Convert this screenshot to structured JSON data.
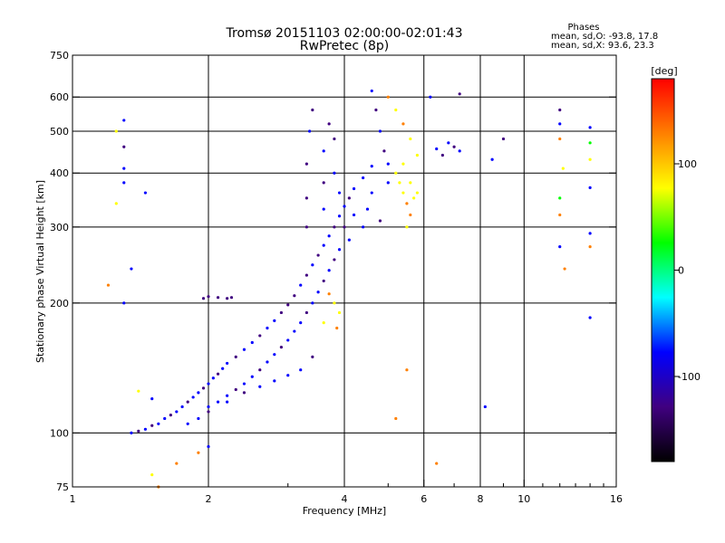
{
  "chart_data": {
    "type": "scatter",
    "title": "Tromsø 20151103 02:00:00-02:01:43",
    "subtitle": "RwPretec (8p)",
    "xlabel": "Frequency [MHz]",
    "ylabel": "Stationary phase Virtual Height [km]",
    "x_scale": "log",
    "y_scale": "log",
    "xlim": [
      1,
      16
    ],
    "ylim": [
      75,
      750
    ],
    "x_ticks": [
      1,
      2,
      4,
      6,
      8,
      10,
      16
    ],
    "x_minor_ticks": [
      3,
      5,
      7,
      9,
      11,
      12,
      13,
      14,
      15
    ],
    "y_ticks": [
      75,
      100,
      200,
      300,
      400,
      500,
      600,
      750
    ],
    "grid": true,
    "phases_box": {
      "heading": "Phases",
      "o_line": "mean, sd,O: -93.8, 17.8",
      "x_line": "mean, sd,X:  93.6, 23.3"
    },
    "colorbar": {
      "label": "[deg]",
      "range": [
        -180,
        180
      ],
      "ticks": [
        100,
        0,
        -100
      ],
      "colors": [
        "#ff0000",
        "#ff8000",
        "#ffff00",
        "#00ff00",
        "#00ffff",
        "#0000ff",
        "#400080",
        "#000000"
      ]
    },
    "series": [
      {
        "values": [
          [
            1.35,
            100,
            -100
          ],
          [
            1.4,
            101,
            -105
          ],
          [
            1.45,
            102,
            -98
          ],
          [
            1.5,
            104,
            -110
          ],
          [
            1.55,
            105,
            -95
          ],
          [
            1.6,
            108,
            -100
          ],
          [
            1.65,
            110,
            -108
          ],
          [
            1.7,
            112,
            -102
          ],
          [
            1.75,
            115,
            -97
          ],
          [
            1.8,
            118,
            -112
          ],
          [
            1.85,
            121,
            -100
          ],
          [
            1.9,
            124,
            -95
          ],
          [
            1.95,
            127,
            -105
          ],
          [
            2.0,
            130,
            -100
          ],
          [
            2.05,
            134,
            -90
          ],
          [
            2.1,
            137,
            -110
          ],
          [
            2.15,
            141,
            -100
          ],
          [
            2.2,
            145,
            -95
          ],
          [
            2.3,
            150,
            -105
          ],
          [
            2.4,
            156,
            -100
          ],
          [
            2.5,
            162,
            -92
          ],
          [
            2.6,
            168,
            -108
          ],
          [
            2.7,
            175,
            -100
          ],
          [
            2.8,
            182,
            -96
          ],
          [
            2.9,
            190,
            -104
          ],
          [
            3.0,
            198,
            -110
          ],
          [
            3.1,
            208,
            -115
          ],
          [
            3.2,
            220,
            -100
          ],
          [
            3.3,
            232,
            -105
          ],
          [
            3.4,
            245,
            -98
          ],
          [
            3.5,
            258,
            -110
          ],
          [
            3.6,
            272,
            -102
          ],
          [
            3.7,
            286,
            -96
          ],
          [
            3.8,
            300,
            -104
          ],
          [
            3.9,
            318,
            -100
          ],
          [
            4.0,
            335,
            -94
          ],
          [
            4.1,
            350,
            -110
          ],
          [
            4.2,
            368,
            -102
          ],
          [
            4.4,
            390,
            -98
          ],
          [
            4.6,
            415,
            -100
          ],
          [
            2.0,
            115,
            -98
          ],
          [
            2.1,
            118,
            -102
          ],
          [
            2.2,
            122,
            -96
          ],
          [
            2.3,
            126,
            -104
          ],
          [
            2.4,
            130,
            -100
          ],
          [
            2.5,
            135,
            -92
          ],
          [
            2.6,
            140,
            -105
          ],
          [
            2.7,
            146,
            -100
          ],
          [
            2.8,
            152,
            -96
          ],
          [
            2.9,
            158,
            -108
          ],
          [
            3.0,
            164,
            -100
          ],
          [
            3.1,
            172,
            -102
          ],
          [
            3.2,
            180,
            -98
          ],
          [
            3.3,
            190,
            -104
          ],
          [
            3.4,
            200,
            -100
          ],
          [
            3.5,
            212,
            -96
          ],
          [
            3.6,
            225,
            -110
          ],
          [
            3.7,
            238,
            -100
          ],
          [
            3.8,
            252,
            -104
          ],
          [
            3.9,
            266,
            -98
          ],
          [
            1.8,
            105,
            -100
          ],
          [
            1.9,
            108,
            -96
          ],
          [
            2.0,
            112,
            -104
          ],
          [
            2.2,
            118,
            -98
          ],
          [
            2.4,
            124,
            -106
          ],
          [
            2.6,
            128,
            -100
          ],
          [
            2.8,
            132,
            -95
          ],
          [
            3.0,
            136,
            -102
          ],
          [
            3.2,
            140,
            -98
          ],
          [
            3.4,
            150,
            -104
          ],
          [
            3.3,
            300,
            -115
          ],
          [
            3.3,
            350,
            -110
          ],
          [
            3.3,
            420,
            -108
          ],
          [
            3.35,
            500,
            -100
          ],
          [
            3.4,
            560,
            -112
          ],
          [
            3.6,
            330,
            -100
          ],
          [
            3.6,
            380,
            -106
          ],
          [
            3.6,
            450,
            -98
          ],
          [
            3.7,
            520,
            -104
          ],
          [
            3.8,
            480,
            -110
          ],
          [
            3.8,
            400,
            -100
          ],
          [
            3.9,
            360,
            -96
          ],
          [
            4.0,
            300,
            -104
          ],
          [
            4.1,
            280,
            -100
          ],
          [
            4.2,
            320,
            -95
          ],
          [
            4.4,
            300,
            -100
          ],
          [
            4.5,
            330,
            -102
          ],
          [
            4.6,
            360,
            -98
          ],
          [
            4.8,
            310,
            -104
          ],
          [
            4.6,
            620,
            -100
          ],
          [
            4.7,
            560,
            -110
          ],
          [
            4.8,
            500,
            -96
          ],
          [
            4.9,
            450,
            -104
          ],
          [
            5.0,
            420,
            -100
          ],
          [
            5.0,
            380,
            -100
          ],
          [
            2.2,
            205,
            -120
          ],
          [
            2.1,
            206,
            -125
          ],
          [
            2.0,
            207,
            -118
          ],
          [
            1.95,
            205,
            -130
          ],
          [
            2.25,
            206,
            -122
          ],
          [
            5.3,
            380,
            100
          ],
          [
            5.4,
            360,
            95
          ],
          [
            5.5,
            340,
            105
          ],
          [
            5.6,
            320,
            110
          ],
          [
            5.7,
            350,
            100
          ],
          [
            5.2,
            400,
            98
          ],
          [
            5.4,
            420,
            90
          ],
          [
            5.6,
            380,
            102
          ],
          [
            5.8,
            360,
            96
          ],
          [
            5.5,
            300,
            100
          ],
          [
            3.8,
            200,
            95
          ],
          [
            3.9,
            190,
            100
          ],
          [
            3.7,
            210,
            105
          ],
          [
            3.6,
            180,
            98
          ],
          [
            3.85,
            175,
            104
          ],
          [
            5.0,
            600,
            110
          ],
          [
            5.2,
            560,
            96
          ],
          [
            5.4,
            520,
            104
          ],
          [
            5.6,
            480,
            100
          ],
          [
            5.8,
            440,
            92
          ],
          [
            7.0,
            460,
            -105
          ],
          [
            7.2,
            450,
            -100
          ],
          [
            6.8,
            470,
            -98
          ],
          [
            6.6,
            440,
            -104
          ],
          [
            6.4,
            455,
            -100
          ],
          [
            9.0,
            480,
            -110
          ],
          [
            8.5,
            430,
            -100
          ],
          [
            8.2,
            115,
            -100
          ],
          [
            7.2,
            610,
            -115
          ],
          [
            6.2,
            600,
            -100
          ],
          [
            1.3,
            530,
            -100
          ],
          [
            1.3,
            460,
            -105
          ],
          [
            1.3,
            410,
            -98
          ],
          [
            1.3,
            380,
            -102
          ],
          [
            1.3,
            200,
            -100
          ],
          [
            1.25,
            500,
            95
          ],
          [
            1.35,
            240,
            -100
          ],
          [
            1.25,
            340,
            60
          ],
          [
            1.2,
            220,
            110
          ],
          [
            1.45,
            360,
            -100
          ],
          [
            12.0,
            560,
            -105
          ],
          [
            12.0,
            520,
            -100
          ],
          [
            12.0,
            480,
            110
          ],
          [
            12.2,
            410,
            100
          ],
          [
            12.0,
            350,
            40
          ],
          [
            12.0,
            320,
            105
          ],
          [
            12.0,
            270,
            -100
          ],
          [
            12.3,
            240,
            120
          ],
          [
            14.0,
            510,
            -100
          ],
          [
            14.0,
            470,
            30
          ],
          [
            14.0,
            430,
            80
          ],
          [
            14.0,
            370,
            -100
          ],
          [
            14.0,
            290,
            -95
          ],
          [
            14.0,
            270,
            140
          ],
          [
            14.0,
            185,
            -100
          ],
          [
            6.4,
            85,
            140
          ],
          [
            5.2,
            108,
            105
          ],
          [
            5.5,
            140,
            110
          ],
          [
            1.5,
            80,
            100
          ],
          [
            1.7,
            85,
            105
          ],
          [
            1.9,
            90,
            120
          ],
          [
            2.0,
            93,
            -100
          ],
          [
            1.4,
            125,
            60
          ],
          [
            1.5,
            120,
            -100
          ],
          [
            1.55,
            75,
            110
          ]
        ]
      }
    ]
  }
}
